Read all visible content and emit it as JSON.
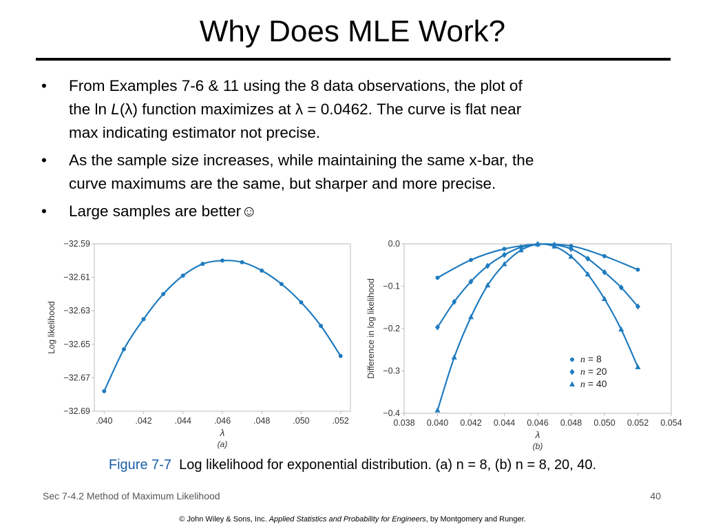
{
  "slide": {
    "title": "Why Does MLE Work?",
    "bullets": [
      {
        "marker": "•",
        "parts": [
          "From Examples 7-6 & 11 using the 8 data observations, the plot of",
          "the ln ",
          "L",
          "(λ) function maximizes at λ = 0.0462.  The curve is flat near",
          "max indicating estimator not precise."
        ]
      },
      {
        "marker": "•",
        "parts": [
          "As the sample size increases, while maintaining the same x-bar, the",
          "curve maximums are the same, but sharper and more precise."
        ]
      },
      {
        "marker": "•",
        "parts": [
          "Large samples are better",
          "☺"
        ]
      }
    ],
    "caption": {
      "figure_label": "Figure 7-7",
      "text": "Log likelihood for exponential distribution.  (a) n = 8, (b) n = 8, 20, 40."
    },
    "footer": {
      "section": "Sec 7-4.2 Method of Maximum Likelihood",
      "page": "40",
      "copyright_prefix": "© John Wiley & Sons, Inc.  ",
      "book": "Applied Statistics and Probability for Engineers",
      "copyright_suffix": ", by Montgomery and Runger."
    },
    "colors": {
      "series": "#1f7bbf",
      "caption_accent": "#1a5fa8",
      "axis": "#bbbbbb"
    }
  },
  "chart_data": [
    {
      "type": "line",
      "panel_label": "(a)",
      "xlabel": "λ",
      "ylabel": "Log likelihood",
      "xlim": [
        0.0395,
        0.0525
      ],
      "ylim": [
        -32.69,
        -32.59
      ],
      "x_ticks": [
        0.04,
        0.042,
        0.044,
        0.046,
        0.048,
        0.05,
        0.052
      ],
      "x_tick_labels": [
        ".040",
        ".042",
        ".044",
        ".046",
        ".048",
        ".050",
        ".052"
      ],
      "y_ticks": [
        -32.59,
        -32.61,
        -32.63,
        -32.65,
        -32.67,
        -32.69
      ],
      "y_tick_labels": [
        "−32.59",
        "−32.61",
        "−32.63",
        "−32.65",
        "−32.67",
        "−32.69"
      ],
      "grid": false,
      "series": [
        {
          "marker": "circle",
          "x": [
            0.04,
            0.041,
            0.042,
            0.043,
            0.044,
            0.045,
            0.046,
            0.047,
            0.048,
            0.049,
            0.05,
            0.051,
            0.052
          ],
          "y": [
            -32.678,
            -32.653,
            -32.635,
            -32.62,
            -32.609,
            -32.602,
            -32.6,
            -32.601,
            -32.606,
            -32.614,
            -32.625,
            -32.639,
            -32.657
          ]
        }
      ]
    },
    {
      "type": "line",
      "panel_label": "(b)",
      "xlabel": "λ",
      "ylabel": "Difference in log likelihood",
      "xlim": [
        0.038,
        0.054
      ],
      "ylim": [
        -0.4,
        0.0
      ],
      "x_ticks": [
        0.038,
        0.04,
        0.042,
        0.044,
        0.046,
        0.048,
        0.05,
        0.052,
        0.054
      ],
      "x_tick_labels": [
        "0.038",
        "0.040",
        "0.042",
        "0.044",
        "0.046",
        "0.048",
        "0.050",
        "0.052",
        "0.054"
      ],
      "y_ticks": [
        0.0,
        -0.1,
        -0.2,
        -0.3,
        -0.4
      ],
      "y_tick_labels": [
        "0.0",
        "−0.1",
        "−0.2",
        "−0.3",
        "−0.4"
      ],
      "grid": false,
      "legend_position": "bottom-right",
      "series": [
        {
          "name_symbol": "n",
          "name_value": "= 8",
          "marker": "circle",
          "x": [
            0.04,
            0.042,
            0.044,
            0.046,
            0.048,
            0.05,
            0.052
          ],
          "y": [
            -0.08,
            -0.038,
            -0.012,
            -0.001,
            -0.005,
            -0.029,
            -0.061
          ]
        },
        {
          "name_symbol": "n",
          "name_value": "= 20",
          "marker": "diamond",
          "x": [
            0.04,
            0.041,
            0.042,
            0.043,
            0.044,
            0.045,
            0.046,
            0.047,
            0.048,
            0.049,
            0.05,
            0.051,
            0.052
          ],
          "y": [
            -0.197,
            -0.137,
            -0.089,
            -0.052,
            -0.026,
            -0.008,
            -0.001,
            -0.002,
            -0.012,
            -0.035,
            -0.067,
            -0.103,
            -0.148
          ]
        },
        {
          "name_symbol": "n",
          "name_value": "= 40",
          "marker": "triangle",
          "x": [
            0.04,
            0.041,
            0.042,
            0.043,
            0.044,
            0.045,
            0.046,
            0.047,
            0.048,
            0.049,
            0.05,
            0.051,
            0.052
          ],
          "y": [
            -0.393,
            -0.268,
            -0.173,
            -0.098,
            -0.048,
            -0.015,
            -0.001,
            -0.006,
            -0.03,
            -0.072,
            -0.13,
            -0.202,
            -0.291
          ]
        }
      ]
    }
  ]
}
